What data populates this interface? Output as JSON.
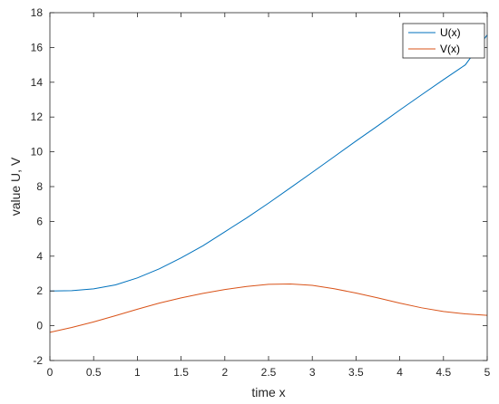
{
  "chart_data": {
    "type": "line",
    "title": "",
    "xlabel": "time x",
    "ylabel": "value U, V",
    "xlim": [
      0,
      5
    ],
    "ylim": [
      -2,
      18
    ],
    "xticks": [
      0,
      0.5,
      1,
      1.5,
      2,
      2.5,
      3,
      3.5,
      4,
      4.5,
      5
    ],
    "yticks": [
      -2,
      0,
      2,
      4,
      6,
      8,
      10,
      12,
      14,
      16,
      18
    ],
    "xtick_labels": [
      "0",
      "0.5",
      "1",
      "1.5",
      "2",
      "2.5",
      "3",
      "3.5",
      "4",
      "4.5",
      "5"
    ],
    "ytick_labels": [
      "-2",
      "0",
      "2",
      "4",
      "6",
      "8",
      "10",
      "12",
      "14",
      "16",
      "18"
    ],
    "grid": false,
    "legend": "top-right",
    "x": [
      0,
      0.25,
      0.5,
      0.75,
      1,
      1.25,
      1.5,
      1.75,
      2,
      2.25,
      2.5,
      2.75,
      3,
      3.25,
      3.5,
      3.75,
      4,
      4.25,
      4.5,
      4.75,
      5
    ],
    "series": [
      {
        "name": "U(x)",
        "color": "#0072BD",
        "values": [
          2.0,
          2.02,
          2.12,
          2.35,
          2.75,
          3.27,
          3.9,
          4.6,
          5.4,
          6.2,
          7.05,
          7.93,
          8.82,
          9.72,
          10.62,
          11.5,
          12.4,
          13.28,
          14.15,
          15.0,
          16.72
        ]
      },
      {
        "name": "V(x)",
        "color": "#D95319",
        "values": [
          -0.38,
          -0.1,
          0.22,
          0.58,
          0.95,
          1.3,
          1.6,
          1.86,
          2.08,
          2.26,
          2.38,
          2.4,
          2.32,
          2.13,
          1.88,
          1.6,
          1.3,
          1.03,
          0.82,
          0.68,
          0.6
        ]
      }
    ]
  }
}
